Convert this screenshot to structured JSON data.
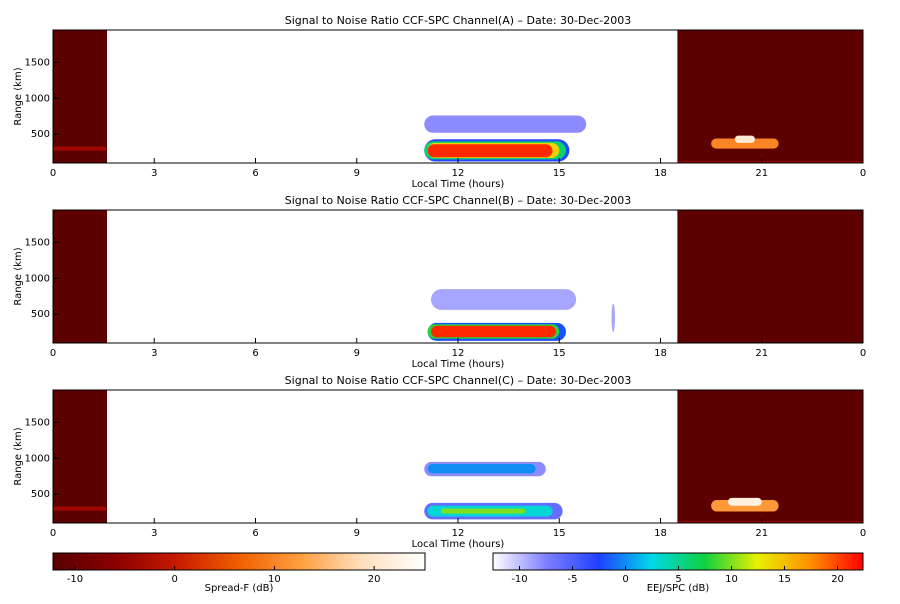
{
  "chart_data": [
    {
      "type": "heatmap",
      "title": "Signal to Noise Ratio CCF-SPC Channel(A) – Date: 30-Dec-2003",
      "xlabel": "Local Time (hours)",
      "ylabel": "Range (km)",
      "xlim": [
        0,
        24
      ],
      "xticks": [
        0,
        3,
        6,
        9,
        12,
        15,
        18,
        21,
        {
          "value": 24,
          "label": "0"
        }
      ],
      "ylim": [
        100,
        1950
      ],
      "yticks": [
        500,
        1000,
        1500
      ],
      "spread_f": [
        {
          "x": [
            0,
            1.6
          ],
          "range": [
            100,
            1950
          ],
          "value": -12
        },
        {
          "x": [
            18.5,
            24
          ],
          "range": [
            100,
            1950
          ],
          "value": -12
        },
        {
          "x": [
            0,
            1.6
          ],
          "range": [
            270,
            330
          ],
          "value": -4
        },
        {
          "x": [
            18.5,
            24
          ],
          "range": [
            100,
            125
          ],
          "value": -5
        },
        {
          "x": [
            19.5,
            21.5
          ],
          "range": [
            300,
            440
          ],
          "value": 10
        },
        {
          "x": [
            20.2,
            20.8
          ],
          "range": [
            380,
            480
          ],
          "value": 21
        }
      ],
      "eej_spc": [
        {
          "x": [
            11,
            15.8
          ],
          "range": [
            520,
            760
          ],
          "value": -8
        },
        {
          "x": [
            11,
            15.3
          ],
          "range": [
            120,
            430
          ],
          "value": -3
        },
        {
          "x": [
            11,
            15.2
          ],
          "range": [
            150,
            400
          ],
          "value": 6
        },
        {
          "x": [
            11.1,
            15.0
          ],
          "range": [
            170,
            380
          ],
          "value": 14
        },
        {
          "x": [
            11.1,
            14.8
          ],
          "range": [
            180,
            360
          ],
          "value": 21
        }
      ]
    },
    {
      "type": "heatmap",
      "title": "Signal to Noise Ratio CCF-SPC Channel(B) – Date: 30-Dec-2003",
      "xlabel": "Local Time (hours)",
      "ylabel": "Range (km)",
      "xlim": [
        0,
        24
      ],
      "xticks": [
        0,
        3,
        6,
        9,
        12,
        15,
        18,
        21,
        {
          "value": 24,
          "label": "0"
        }
      ],
      "ylim": [
        100,
        1950
      ],
      "yticks": [
        500,
        1000,
        1500
      ],
      "spread_f": [
        {
          "x": [
            0,
            1.6
          ],
          "range": [
            100,
            1950
          ],
          "value": -12
        },
        {
          "x": [
            18.5,
            24
          ],
          "range": [
            100,
            1950
          ],
          "value": -12
        }
      ],
      "eej_spc": [
        {
          "x": [
            11.2,
            15.5
          ],
          "range": [
            560,
            850
          ],
          "value": -9
        },
        {
          "x": [
            16.55,
            16.65
          ],
          "range": [
            250,
            650
          ],
          "value": -9
        },
        {
          "x": [
            11.1,
            15.2
          ],
          "range": [
            130,
            380
          ],
          "value": -2
        },
        {
          "x": [
            11.1,
            15.0
          ],
          "range": [
            160,
            360
          ],
          "value": 8
        },
        {
          "x": [
            11.2,
            14.9
          ],
          "range": [
            180,
            340
          ],
          "value": 21
        }
      ]
    },
    {
      "type": "heatmap",
      "title": "Signal to Noise Ratio CCF-SPC Channel(C) – Date: 30-Dec-2003",
      "xlabel": "Local Time (hours)",
      "ylabel": "Range (km)",
      "xlim": [
        0,
        24
      ],
      "xticks": [
        0,
        3,
        6,
        9,
        12,
        15,
        18,
        21,
        {
          "value": 24,
          "label": "0"
        }
      ],
      "ylim": [
        100,
        1950
      ],
      "yticks": [
        500,
        1000,
        1500
      ],
      "spread_f": [
        {
          "x": [
            0,
            1.6
          ],
          "range": [
            100,
            1950
          ],
          "value": -12
        },
        {
          "x": [
            18.5,
            24
          ],
          "range": [
            100,
            1950
          ],
          "value": -12
        },
        {
          "x": [
            0,
            1.6
          ],
          "range": [
            270,
            330
          ],
          "value": -4
        },
        {
          "x": [
            18.5,
            24
          ],
          "range": [
            100,
            125
          ],
          "value": -5
        },
        {
          "x": [
            19.5,
            21.5
          ],
          "range": [
            260,
            420
          ],
          "value": 12
        },
        {
          "x": [
            20.0,
            21.0
          ],
          "range": [
            340,
            450
          ],
          "value": 22
        }
      ],
      "eej_spc": [
        {
          "x": [
            11,
            14.6
          ],
          "range": [
            750,
            950
          ],
          "value": -8
        },
        {
          "x": [
            11.1,
            14.3
          ],
          "range": [
            790,
            920
          ],
          "value": 0
        },
        {
          "x": [
            11,
            15.1
          ],
          "range": [
            150,
            380
          ],
          "value": -6
        },
        {
          "x": [
            11.1,
            14.8
          ],
          "range": [
            190,
            340
          ],
          "value": 3
        },
        {
          "x": [
            11.5,
            14.0
          ],
          "range": [
            230,
            300
          ],
          "value": 10
        }
      ]
    }
  ],
  "colorbars": [
    {
      "label": "Spread-F (dB)",
      "lim": [
        -12.2,
        25.1
      ],
      "ticks": [
        -10,
        0,
        10,
        20
      ],
      "colors": [
        "#5a0000",
        "#8a0000",
        "#c81a00",
        "#f06000",
        "#ffa040",
        "#ffe0c0",
        "#ffffff"
      ]
    },
    {
      "label": "EEJ/SPC (dB)",
      "lim": [
        -12.5,
        22.4
      ],
      "ticks": [
        -10,
        -5,
        0,
        5,
        10,
        15,
        20
      ],
      "colors": [
        "#ffffff",
        "#8080ff",
        "#2040ff",
        "#00d8e8",
        "#10d040",
        "#e8f000",
        "#ff9000",
        "#ff0000"
      ]
    }
  ]
}
